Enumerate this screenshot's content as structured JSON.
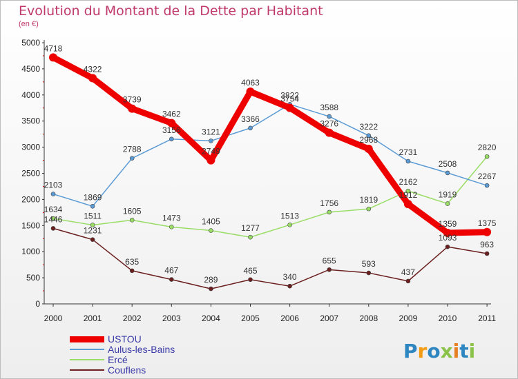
{
  "page": {
    "title": "Evolution du Montant de la Dette par Habitant",
    "subtitle": "(en €)",
    "logo_text": "Proxiti"
  },
  "chart_data": {
    "type": "line",
    "title": "Evolution du Montant de la Dette par Habitant",
    "subtitle": "(en €)",
    "xlabel": "",
    "ylabel": "",
    "x": [
      "2000",
      "2001",
      "2002",
      "2003",
      "2004",
      "2005",
      "2006",
      "2007",
      "2008",
      "2009",
      "2010",
      "2011"
    ],
    "ylim": [
      0,
      5000
    ],
    "yticks": [
      "0",
      "500",
      "1000",
      "1500",
      "2000",
      "2500",
      "3000",
      "3500",
      "4000",
      "4500",
      "5000"
    ],
    "grid": false,
    "legend": "bottom-left",
    "series": [
      {
        "name": "Couflens",
        "color": "#6b1f1f",
        "values": [
          1446,
          1231,
          635,
          467,
          289,
          465,
          340,
          655,
          593,
          437,
          1093,
          963
        ]
      },
      {
        "name": "Ercé",
        "color": "#99dd66",
        "values": [
          1634,
          1511,
          1605,
          1473,
          1405,
          1277,
          1513,
          1756,
          1819,
          2162,
          1919,
          2820
        ]
      },
      {
        "name": "Aulus-les-Bains",
        "color": "#5b9bd5",
        "values": [
          2103,
          1869,
          2788,
          3156,
          3121,
          3366,
          3822,
          3588,
          3222,
          2731,
          2508,
          2267
        ]
      },
      {
        "name": "USTOU",
        "color": "#ee0000",
        "values": [
          4718,
          4322,
          3739,
          3462,
          2749,
          4063,
          3754,
          3276,
          2968,
          1912,
          1359,
          1375
        ]
      }
    ]
  }
}
